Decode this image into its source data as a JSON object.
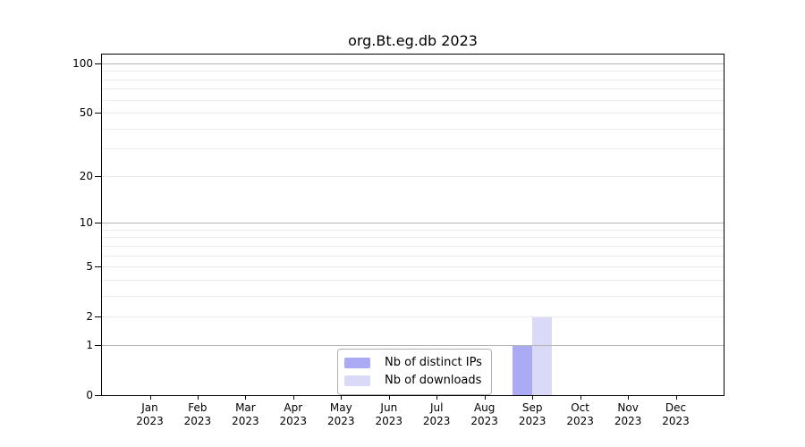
{
  "chart_data": {
    "type": "bar",
    "title": "org.Bt.eg.db 2023",
    "categories": [
      "Jan",
      "Feb",
      "Mar",
      "Apr",
      "May",
      "Jun",
      "Jul",
      "Aug",
      "Sep",
      "Oct",
      "Nov",
      "Dec"
    ],
    "category_year": "2023",
    "series": [
      {
        "name": "Nb of distinct IPs",
        "color": "#aaaaf5",
        "values": [
          0,
          0,
          0,
          0,
          0,
          0,
          0,
          0,
          1,
          0,
          0,
          0
        ]
      },
      {
        "name": "Nb of downloads",
        "color": "#dadaf8",
        "values": [
          0,
          0,
          0,
          0,
          0,
          0,
          0,
          0,
          2,
          0,
          0,
          0
        ]
      }
    ],
    "y_axis": {
      "scale": "log1p",
      "min": 0,
      "max": 100,
      "tick_labels": [
        0,
        1,
        2,
        5,
        10,
        20,
        50,
        100
      ],
      "major_gridlines": [
        1,
        10,
        100
      ],
      "minor_gridlines": [
        2,
        3,
        4,
        5,
        6,
        7,
        8,
        9,
        20,
        30,
        40,
        50,
        60,
        70,
        80,
        90
      ]
    },
    "xlabel": "",
    "ylabel": "",
    "legend_position": "bottom-center",
    "grid": "horizontal",
    "colors": {
      "axis": "#000000",
      "major_grid": "#b4b4b4",
      "minor_grid": "#ebebeb",
      "background": "#ffffff"
    }
  }
}
